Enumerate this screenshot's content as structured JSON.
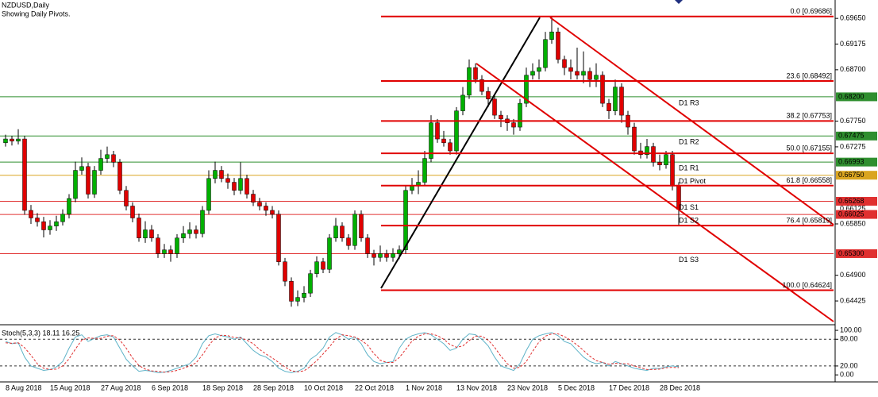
{
  "chart_data": {
    "type": "candlestick",
    "title": "NZDUSD,Daily",
    "subtitle": "Showing Daily Pivots.",
    "up_color": "#00b000",
    "down_color": "#e00000",
    "categories": [
      "8 Aug 2018",
      null,
      null,
      null,
      null,
      null,
      null,
      "15 Aug 2018",
      null,
      null,
      null,
      null,
      null,
      null,
      null,
      "27 Aug 2018",
      null,
      null,
      null,
      null,
      null,
      null,
      null,
      "6 Sep 2018",
      null,
      null,
      null,
      null,
      null,
      null,
      null,
      "18 Sep 2018",
      null,
      null,
      null,
      null,
      null,
      null,
      null,
      "28 Sep 2018",
      null,
      null,
      null,
      null,
      null,
      null,
      null,
      "10 Oct 2018",
      null,
      null,
      null,
      null,
      null,
      null,
      null,
      "22 Oct 2018",
      null,
      null,
      null,
      null,
      null,
      null,
      null,
      "1 Nov 2018",
      null,
      null,
      null,
      null,
      null,
      null,
      null,
      "13 Nov 2018",
      null,
      null,
      null,
      null,
      null,
      null,
      null,
      "23 Nov 2018",
      null,
      null,
      null,
      null,
      null,
      null,
      null,
      "5 Dec 2018",
      null,
      null,
      null,
      null,
      null,
      null,
      null,
      "17 Dec 2018",
      null,
      null,
      null,
      null,
      null,
      null,
      null,
      "28 Dec 2018",
      null,
      null,
      null
    ],
    "candles": [
      [
        0.6735,
        0.675,
        0.6728,
        0.6742
      ],
      [
        0.6742,
        0.6748,
        0.673,
        0.6738
      ],
      [
        0.6738,
        0.676,
        0.6732,
        0.6742
      ],
      [
        0.6742,
        0.6748,
        0.6602,
        0.661
      ],
      [
        0.661,
        0.662,
        0.6585,
        0.6596
      ],
      [
        0.6596,
        0.6605,
        0.658,
        0.6589
      ],
      [
        0.6589,
        0.6598,
        0.656,
        0.6574
      ],
      [
        0.6574,
        0.6592,
        0.6565,
        0.6581
      ],
      [
        0.6581,
        0.66,
        0.6572,
        0.6589
      ],
      [
        0.6589,
        0.6612,
        0.6582,
        0.6603
      ],
      [
        0.6603,
        0.664,
        0.6595,
        0.6632
      ],
      [
        0.6632,
        0.67,
        0.6625,
        0.6684
      ],
      [
        0.6684,
        0.6708,
        0.6676,
        0.6691
      ],
      [
        0.6691,
        0.6698,
        0.6632,
        0.664
      ],
      [
        0.664,
        0.6692,
        0.6633,
        0.6684
      ],
      [
        0.6684,
        0.6722,
        0.6676,
        0.6706
      ],
      [
        0.6706,
        0.6728,
        0.6698,
        0.6713
      ],
      [
        0.6713,
        0.672,
        0.669,
        0.6699
      ],
      [
        0.6699,
        0.6705,
        0.664,
        0.6647
      ],
      [
        0.6647,
        0.6655,
        0.661,
        0.6618
      ],
      [
        0.6618,
        0.6625,
        0.6588,
        0.6596
      ],
      [
        0.6596,
        0.6604,
        0.6552,
        0.6559
      ],
      [
        0.6559,
        0.659,
        0.655,
        0.6574
      ],
      [
        0.6574,
        0.6583,
        0.6552,
        0.6559
      ],
      [
        0.6559,
        0.6566,
        0.6522,
        0.653
      ],
      [
        0.653,
        0.6548,
        0.6522,
        0.6537
      ],
      [
        0.6537,
        0.6545,
        0.6515,
        0.653
      ],
      [
        0.653,
        0.6566,
        0.6522,
        0.6559
      ],
      [
        0.6559,
        0.6581,
        0.655,
        0.6567
      ],
      [
        0.6567,
        0.6588,
        0.6558,
        0.6574
      ],
      [
        0.6574,
        0.6582,
        0.6558,
        0.6567
      ],
      [
        0.6567,
        0.6618,
        0.656,
        0.661
      ],
      [
        0.661,
        0.6684,
        0.6603,
        0.6669
      ],
      [
        0.6669,
        0.67,
        0.666,
        0.6684
      ],
      [
        0.6684,
        0.6692,
        0.6662,
        0.6669
      ],
      [
        0.6669,
        0.6678,
        0.665,
        0.6662
      ],
      [
        0.6662,
        0.667,
        0.6638,
        0.6647
      ],
      [
        0.6647,
        0.6699,
        0.664,
        0.6669
      ],
      [
        0.6669,
        0.6676,
        0.6632,
        0.664
      ],
      [
        0.664,
        0.6648,
        0.6618,
        0.6625
      ],
      [
        0.6625,
        0.6633,
        0.661,
        0.6618
      ],
      [
        0.6618,
        0.6625,
        0.66,
        0.661
      ],
      [
        0.661,
        0.6618,
        0.6595,
        0.6603
      ],
      [
        0.6603,
        0.661,
        0.6508,
        0.6515
      ],
      [
        0.6515,
        0.6522,
        0.647,
        0.6479
      ],
      [
        0.6479,
        0.6486,
        0.6432,
        0.6442
      ],
      [
        0.6442,
        0.6462,
        0.6433,
        0.6449
      ],
      [
        0.6449,
        0.647,
        0.644,
        0.6457
      ],
      [
        0.6457,
        0.65,
        0.645,
        0.6493
      ],
      [
        0.6493,
        0.6525,
        0.6486,
        0.6515
      ],
      [
        0.6515,
        0.6522,
        0.6494,
        0.6501
      ],
      [
        0.6501,
        0.6566,
        0.6494,
        0.6559
      ],
      [
        0.6559,
        0.6596,
        0.6552,
        0.6581
      ],
      [
        0.6581,
        0.6588,
        0.6552,
        0.6559
      ],
      [
        0.6559,
        0.6566,
        0.6537,
        0.6545
      ],
      [
        0.6545,
        0.661,
        0.6537,
        0.6603
      ],
      [
        0.6603,
        0.661,
        0.6552,
        0.6559
      ],
      [
        0.6559,
        0.6566,
        0.6522,
        0.653
      ],
      [
        0.653,
        0.6537,
        0.6508,
        0.6523
      ],
      [
        0.6523,
        0.6545,
        0.6515,
        0.653
      ],
      [
        0.653,
        0.6537,
        0.6515,
        0.6523
      ],
      [
        0.6523,
        0.654,
        0.6515,
        0.653
      ],
      [
        0.653,
        0.6545,
        0.652,
        0.6537
      ],
      [
        0.6537,
        0.6655,
        0.653,
        0.6647
      ],
      [
        0.6647,
        0.667,
        0.664,
        0.6655
      ],
      [
        0.6655,
        0.6684,
        0.664,
        0.6662
      ],
      [
        0.6662,
        0.672,
        0.6655,
        0.6706
      ],
      [
        0.6706,
        0.6786,
        0.6699,
        0.6772
      ],
      [
        0.6772,
        0.6779,
        0.6735,
        0.6742
      ],
      [
        0.6742,
        0.6757,
        0.6728,
        0.6735
      ],
      [
        0.6735,
        0.6742,
        0.6713,
        0.672
      ],
      [
        0.672,
        0.6801,
        0.6713,
        0.6794
      ],
      [
        0.6794,
        0.6838,
        0.6786,
        0.6823
      ],
      [
        0.6823,
        0.6889,
        0.6816,
        0.6874
      ],
      [
        0.6874,
        0.6882,
        0.6845,
        0.6852
      ],
      [
        0.6852,
        0.686,
        0.6823,
        0.683
      ],
      [
        0.683,
        0.6838,
        0.6801,
        0.6816
      ],
      [
        0.6816,
        0.6823,
        0.6779,
        0.6786
      ],
      [
        0.6786,
        0.6794,
        0.6764,
        0.6779
      ],
      [
        0.6779,
        0.6786,
        0.6757,
        0.6772
      ],
      [
        0.6772,
        0.6779,
        0.675,
        0.6764
      ],
      [
        0.6764,
        0.6816,
        0.6757,
        0.6808
      ],
      [
        0.6808,
        0.6874,
        0.6801,
        0.686
      ],
      [
        0.686,
        0.6882,
        0.6852,
        0.6867
      ],
      [
        0.6867,
        0.6889,
        0.6852,
        0.6874
      ],
      [
        0.6874,
        0.694,
        0.6867,
        0.6926
      ],
      [
        0.6926,
        0.6969,
        0.6918,
        0.694
      ],
      [
        0.694,
        0.6948,
        0.6882,
        0.6889
      ],
      [
        0.6889,
        0.6896,
        0.686,
        0.6874
      ],
      [
        0.6874,
        0.6889,
        0.6852,
        0.6867
      ],
      [
        0.6867,
        0.6911,
        0.6852,
        0.686
      ],
      [
        0.686,
        0.6904,
        0.6845,
        0.6867
      ],
      [
        0.6867,
        0.6874,
        0.6838,
        0.6852
      ],
      [
        0.6852,
        0.6882,
        0.6838,
        0.686
      ],
      [
        0.686,
        0.6867,
        0.6801,
        0.6808
      ],
      [
        0.6808,
        0.6816,
        0.6779,
        0.6794
      ],
      [
        0.6794,
        0.6852,
        0.6786,
        0.6838
      ],
      [
        0.6838,
        0.6845,
        0.6772,
        0.6786
      ],
      [
        0.6786,
        0.6794,
        0.675,
        0.6764
      ],
      [
        0.6764,
        0.6772,
        0.6713,
        0.672
      ],
      [
        0.672,
        0.6735,
        0.6706,
        0.6713
      ],
      [
        0.6713,
        0.6742,
        0.6706,
        0.6728
      ],
      [
        0.6728,
        0.6735,
        0.6691,
        0.6699
      ],
      [
        0.6699,
        0.6713,
        0.6684,
        0.6694
      ],
      [
        0.6694,
        0.672,
        0.6687,
        0.6713
      ],
      [
        0.6713,
        0.672,
        0.6647,
        0.6655
      ],
      [
        0.6655,
        0.6662,
        0.6582,
        0.6612
      ]
    ],
    "ylim": [
      0.64,
      0.6999
    ],
    "yticks": [
      {
        "value": 0.6965,
        "label": "0.69650"
      },
      {
        "value": 0.69175,
        "label": "0.69175"
      },
      {
        "value": 0.687,
        "label": "0.68700"
      },
      {
        "value": 0.6775,
        "label": "0.67750"
      },
      {
        "value": 0.67275,
        "label": "0.67275"
      },
      {
        "value": 0.6585,
        "label": "0.65850"
      },
      {
        "value": 0.649,
        "label": "0.64900"
      },
      {
        "value": 0.64425,
        "label": "0.64425"
      }
    ],
    "fib_levels": [
      {
        "label": "0.0 [0.69686]",
        "value": 0.69686
      },
      {
        "label": "23.6 [0.68492]",
        "value": 0.68492
      },
      {
        "label": "38.2 [0.67753]",
        "value": 0.67753
      },
      {
        "label": "50.0 [0.67155]",
        "value": 0.67155
      },
      {
        "label": "61.8 [0.66558]",
        "value": 0.66558
      },
      {
        "label": "76.4 [0.65819]",
        "value": 0.65819
      },
      {
        "label": "100.0 [0.64624]",
        "value": 0.64624
      }
    ],
    "fib_color": "#e00000",
    "pivots": [
      {
        "name": "D1 R3",
        "value": 0.682,
        "label": "0.68200",
        "color": "#2f8f2f"
      },
      {
        "name": "D1 R2",
        "value": 0.67475,
        "label": "0.67475",
        "color": "#2f8f2f"
      },
      {
        "name": "D1 R1",
        "value": 0.66993,
        "label": "0.66993",
        "color": "#2f8f2f"
      },
      {
        "name": "D1 Pivot",
        "value": 0.6675,
        "label": "0.66750",
        "color": "#daa520"
      },
      {
        "name": "D1 S1",
        "value": 0.66268,
        "label": "0.66268",
        "color": "#e03030"
      },
      {
        "name": "D1 S2",
        "value": 0.66025,
        "label": "0.66025",
        "color": "#e03030"
      },
      {
        "name": "D1 S3",
        "value": 0.653,
        "label": "0.65300",
        "color": "#e03030"
      }
    ],
    "price_tag": {
      "value": 0.66125,
      "label": "0.66125"
    },
    "indicator": {
      "title": "Stoch(5,3,3) 18.11 16.25",
      "ylim": [
        -14,
        109
      ],
      "yticks": [
        {
          "value": 100,
          "label": "100.00"
        },
        {
          "value": 80,
          "label": "80.00"
        },
        {
          "value": 20,
          "label": "20.00"
        },
        {
          "value": 0,
          "label": "0.00"
        }
      ],
      "levels": [
        80,
        20
      ],
      "series": [
        {
          "color": "#5fb3c8",
          "values": [
            75,
            70,
            72,
            40,
            20,
            15,
            10,
            12,
            18,
            30,
            60,
            85,
            90,
            75,
            82,
            88,
            90,
            85,
            60,
            35,
            20,
            8,
            10,
            8,
            5,
            6,
            10,
            15,
            20,
            25,
            40,
            70,
            88,
            92,
            88,
            85,
            80,
            85,
            70,
            55,
            45,
            40,
            30,
            15,
            8,
            5,
            8,
            15,
            35,
            45,
            60,
            85,
            95,
            90,
            80,
            85,
            70,
            45,
            30,
            25,
            28,
            30,
            60,
            80,
            88,
            92,
            95,
            90,
            80,
            70,
            55,
            60,
            80,
            92,
            90,
            80,
            65,
            40,
            20,
            15,
            10,
            25,
            55,
            80,
            88,
            92,
            95,
            88,
            75,
            70,
            55,
            40,
            30,
            25,
            28,
            20,
            30,
            25,
            20,
            15,
            12,
            10,
            15,
            14,
            18,
            20,
            18.11
          ]
        },
        {
          "color": "#e03030",
          "values": [
            72,
            71,
            72,
            61,
            44,
            25,
            15,
            12,
            13,
            20,
            36,
            58,
            78,
            83,
            82,
            82,
            87,
            88,
            78,
            60,
            38,
            21,
            13,
            9,
            8,
            6,
            7,
            10,
            15,
            20,
            27,
            45,
            66,
            83,
            89,
            88,
            84,
            83,
            78,
            70,
            57,
            47,
            38,
            28,
            18,
            9,
            7,
            9,
            19,
            32,
            47,
            63,
            80,
            90,
            88,
            85,
            78,
            67,
            48,
            33,
            28,
            28,
            39,
            57,
            76,
            87,
            92,
            92,
            88,
            80,
            68,
            62,
            65,
            77,
            87,
            87,
            78,
            62,
            42,
            25,
            15,
            17,
            30,
            53,
            74,
            87,
            92,
            92,
            86,
            78,
            67,
            55,
            42,
            32,
            28,
            24,
            26,
            25,
            25,
            20,
            16,
            12,
            12,
            13,
            16,
            17,
            16.25
          ]
        }
      ]
    }
  }
}
